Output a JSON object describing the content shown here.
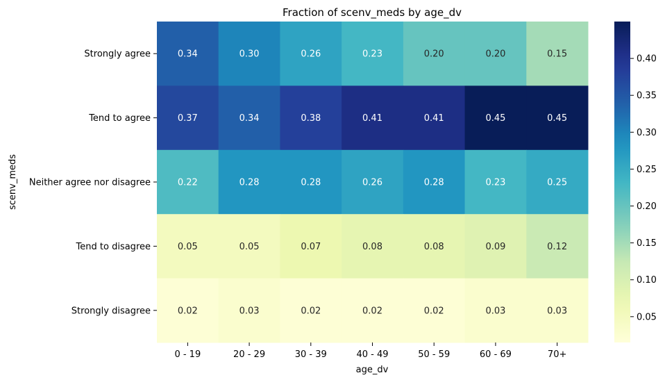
{
  "chart_data": {
    "type": "heatmap",
    "title": "Fraction of scenv_meds by age_dv",
    "xlabel": "age_dv",
    "ylabel": "scenv_meds",
    "x_categories": [
      "0 - 19",
      "20 - 29",
      "30 - 39",
      "40 - 49",
      "50 - 59",
      "60 - 69",
      "70+"
    ],
    "y_categories": [
      "Strongly agree",
      "Tend to agree",
      "Neither agree nor disagree",
      "Tend to disagree",
      "Strongly disagree"
    ],
    "values": [
      [
        0.34,
        0.3,
        0.26,
        0.23,
        0.2,
        0.2,
        0.15
      ],
      [
        0.37,
        0.34,
        0.38,
        0.41,
        0.41,
        0.45,
        0.45
      ],
      [
        0.22,
        0.28,
        0.28,
        0.26,
        0.28,
        0.23,
        0.25
      ],
      [
        0.05,
        0.05,
        0.07,
        0.08,
        0.08,
        0.09,
        0.12
      ],
      [
        0.02,
        0.03,
        0.02,
        0.02,
        0.02,
        0.03,
        0.03
      ]
    ],
    "colormap": "YlGnBu",
    "vmin": 0.015,
    "vmax": 0.45,
    "colorbar_ticks": [
      0.05,
      0.1,
      0.15,
      0.2,
      0.25,
      0.3,
      0.35,
      0.4
    ],
    "colorbar_tick_labels": [
      "0.05",
      "0.10",
      "0.15",
      "0.20",
      "0.25",
      "0.30",
      "0.35",
      "0.40"
    ],
    "annotation_text_colors": {
      "dark_cells": "#ffffff",
      "light_cells": "#262626"
    }
  }
}
